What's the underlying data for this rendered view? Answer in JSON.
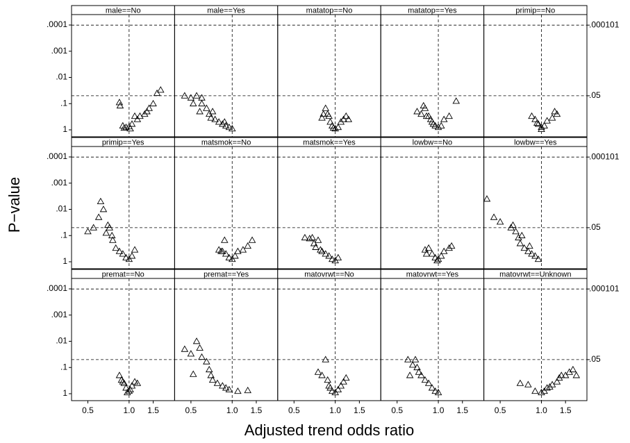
{
  "chart_data": {
    "type": "scatter",
    "xlabel": "Adjusted trend odds ratio",
    "ylabel": "P−value",
    "xscale": "log",
    "yscale": "log",
    "yreversed": true,
    "xlim": [
      0.38,
      2.15
    ],
    "ylim": [
      1.84,
      4e-05
    ],
    "xticks": [
      0.5,
      {
        "value": 1,
        "label": "1.0"
      },
      1.5
    ],
    "yticks": [
      {
        "value": 0.0001,
        "label": ".0001"
      },
      {
        "value": 0.001,
        "label": ".001"
      },
      {
        "value": 0.01,
        "label": ".01"
      },
      {
        "value": 0.1,
        "label": ".1"
      },
      1
    ],
    "y2ticks": [
      {
        "value": 0.000101,
        "label": ".000101"
      },
      {
        "value": 0.05,
        "label": ".05"
      }
    ],
    "xline": 1,
    "marker": "triangle",
    "color": "#000000",
    "panels": [
      {
        "title": "male==No",
        "x": [
          0.85,
          0.86,
          0.9,
          0.95,
          1.0,
          1.05,
          1.1,
          1.15,
          1.2,
          1.3,
          1.35,
          1.4,
          1.5,
          1.6,
          1.7,
          0.92,
          1.02
        ],
        "y": [
          0.09,
          0.12,
          0.7,
          0.8,
          0.75,
          0.6,
          0.3,
          0.4,
          0.3,
          0.25,
          0.2,
          0.15,
          0.1,
          0.04,
          0.03,
          0.85,
          0.9
        ]
      },
      {
        "title": "male==Yes",
        "x": [
          0.45,
          0.5,
          0.55,
          0.6,
          0.52,
          0.6,
          0.65,
          0.58,
          0.68,
          0.7,
          0.75,
          0.8,
          0.85,
          0.9,
          0.95,
          1.0,
          0.88,
          0.72
        ],
        "y": [
          0.05,
          0.06,
          0.05,
          0.06,
          0.1,
          0.1,
          0.15,
          0.2,
          0.25,
          0.35,
          0.4,
          0.5,
          0.6,
          0.7,
          0.8,
          0.9,
          0.5,
          0.2
        ]
      },
      {
        "title": "matatop==No",
        "x": [
          0.85,
          0.88,
          0.9,
          0.8,
          0.92,
          0.95,
          1.0,
          1.05,
          1.1,
          1.15,
          1.2,
          1.25,
          0.82,
          0.97
        ],
        "y": [
          0.15,
          0.25,
          0.3,
          0.35,
          0.5,
          0.7,
          0.9,
          0.8,
          0.5,
          0.4,
          0.3,
          0.4,
          0.25,
          0.85
        ]
      },
      {
        "title": "matatop==Yes",
        "x": [
          0.7,
          0.75,
          0.78,
          0.8,
          0.85,
          0.88,
          0.9,
          0.95,
          1.0,
          1.05,
          1.1,
          1.2,
          1.35,
          0.82,
          0.92
        ],
        "y": [
          0.2,
          0.25,
          0.12,
          0.15,
          0.3,
          0.4,
          0.5,
          0.7,
          0.8,
          0.7,
          0.4,
          0.3,
          0.08,
          0.3,
          0.6
        ]
      },
      {
        "title": "primip==No",
        "x": [
          0.85,
          0.9,
          0.95,
          1.0,
          1.05,
          1.1,
          1.2,
          1.25,
          1.3,
          0.93,
          1.0
        ],
        "y": [
          0.3,
          0.4,
          0.6,
          0.8,
          0.7,
          0.45,
          0.35,
          0.2,
          0.25,
          0.55,
          0.95
        ]
      },
      {
        "title": "primip==Yes",
        "x": [
          0.5,
          0.55,
          0.6,
          0.62,
          0.65,
          0.68,
          0.7,
          0.72,
          0.75,
          0.8,
          0.85,
          0.9,
          0.95,
          1.0,
          1.05,
          1.1,
          0.76
        ],
        "y": [
          0.07,
          0.05,
          0.02,
          0.005,
          0.01,
          0.08,
          0.04,
          0.05,
          0.1,
          0.3,
          0.4,
          0.5,
          0.7,
          0.8,
          0.6,
          0.35,
          0.15
        ]
      },
      {
        "title": "matsmok==No",
        "x": [
          0.8,
          0.85,
          0.88,
          0.9,
          0.95,
          1.0,
          1.05,
          1.1,
          1.2,
          1.3,
          1.4,
          0.83
        ],
        "y": [
          0.35,
          0.4,
          0.15,
          0.5,
          0.7,
          0.8,
          0.6,
          0.4,
          0.35,
          0.25,
          0.15,
          0.4
        ]
      },
      {
        "title": "matsmok==Yes",
        "x": [
          0.6,
          0.65,
          0.68,
          0.7,
          0.72,
          0.75,
          0.78,
          0.8,
          0.85,
          0.9,
          0.95,
          1.0,
          1.05
        ],
        "y": [
          0.12,
          0.13,
          0.12,
          0.2,
          0.28,
          0.15,
          0.35,
          0.4,
          0.5,
          0.6,
          0.8,
          0.9,
          0.7
        ]
      },
      {
        "title": "lowbw==No",
        "x": [
          0.8,
          0.85,
          0.9,
          0.95,
          1.0,
          1.05,
          1.1,
          1.2,
          1.25,
          0.82,
          0.98
        ],
        "y": [
          0.35,
          0.3,
          0.5,
          0.7,
          0.8,
          0.6,
          0.4,
          0.3,
          0.25,
          0.5,
          0.9
        ]
      },
      {
        "title": "lowbw==Yes",
        "x": [
          0.4,
          0.45,
          0.5,
          0.6,
          0.65,
          0.68,
          0.7,
          0.72,
          0.75,
          0.8,
          0.82,
          0.85,
          0.9,
          0.95,
          0.62
        ],
        "y": [
          0.004,
          0.02,
          0.03,
          0.05,
          0.07,
          0.12,
          0.2,
          0.1,
          0.3,
          0.4,
          0.25,
          0.5,
          0.6,
          0.8,
          0.04
        ]
      },
      {
        "title": "premat==No",
        "x": [
          0.85,
          0.88,
          0.9,
          0.92,
          0.95,
          1.0,
          1.05,
          1.1,
          1.15,
          0.97,
          1.02
        ],
        "y": [
          0.2,
          0.3,
          0.35,
          0.4,
          0.6,
          0.8,
          0.5,
          0.35,
          0.4,
          0.9,
          0.7
        ]
      },
      {
        "title": "premat==Yes",
        "x": [
          0.45,
          0.5,
          0.55,
          0.58,
          0.6,
          0.65,
          0.68,
          0.7,
          0.72,
          0.78,
          0.85,
          0.9,
          0.95,
          1.1,
          1.3,
          0.52
        ],
        "y": [
          0.02,
          0.03,
          0.01,
          0.018,
          0.04,
          0.06,
          0.12,
          0.2,
          0.3,
          0.4,
          0.5,
          0.6,
          0.7,
          0.8,
          0.75,
          0.18
        ]
      },
      {
        "title": "matovrwt==No",
        "x": [
          0.75,
          0.8,
          0.85,
          0.88,
          0.9,
          0.95,
          1.0,
          1.05,
          1.1,
          1.15,
          1.2,
          0.92
        ],
        "y": [
          0.15,
          0.2,
          0.05,
          0.3,
          0.5,
          0.8,
          0.9,
          0.7,
          0.5,
          0.35,
          0.25,
          0.6
        ]
      },
      {
        "title": "matovrwt==Yes",
        "x": [
          0.6,
          0.65,
          0.68,
          0.7,
          0.72,
          0.75,
          0.8,
          0.85,
          0.9,
          0.95,
          1.0,
          0.62
        ],
        "y": [
          0.05,
          0.08,
          0.05,
          0.1,
          0.15,
          0.2,
          0.3,
          0.4,
          0.6,
          0.8,
          0.9,
          0.2
        ]
      },
      {
        "title": "matovrwt==Unknown",
        "x": [
          0.7,
          0.8,
          0.9,
          1.0,
          1.05,
          1.1,
          1.15,
          1.2,
          1.3,
          1.35,
          1.4,
          1.5,
          1.6,
          1.7,
          1.8
        ],
        "y": [
          0.4,
          0.45,
          0.8,
          0.9,
          0.8,
          0.6,
          0.55,
          0.45,
          0.35,
          0.25,
          0.2,
          0.2,
          0.15,
          0.12,
          0.2
        ]
      }
    ]
  }
}
